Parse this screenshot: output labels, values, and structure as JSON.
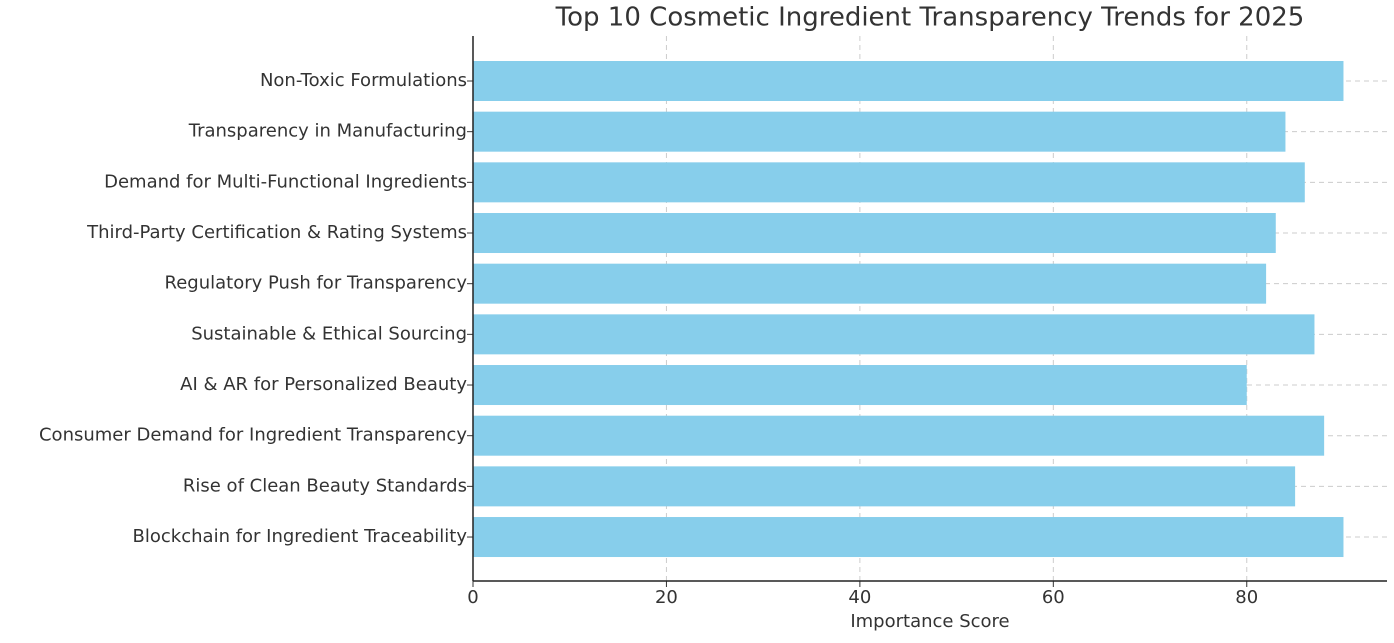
{
  "chart_data": {
    "type": "barh",
    "title": "Top 10 Cosmetic Ingredient Transparency Trends for 2025",
    "x_label": "Importance Score",
    "categories": [
      "Non-Toxic Formulations",
      "Transparency in Manufacturing",
      "Demand for Multi-Functional Ingredients",
      "Third-Party Certification & Rating Systems",
      "Regulatory Push for Transparency",
      "Sustainable & Ethical Sourcing",
      "AI & AR for Personalized Beauty",
      "Consumer Demand for Ingredient Transparency",
      "Rise of Clean Beauty Standards",
      "Blockchain for Ingredient Traceability"
    ],
    "values": [
      90,
      84,
      86,
      83,
      82,
      87,
      80,
      88,
      85,
      90
    ],
    "color": "#87ceeb",
    "xlim": [
      0,
      94.5
    ],
    "xticks": [
      0,
      20,
      40,
      60,
      80
    ],
    "grid": true
  }
}
